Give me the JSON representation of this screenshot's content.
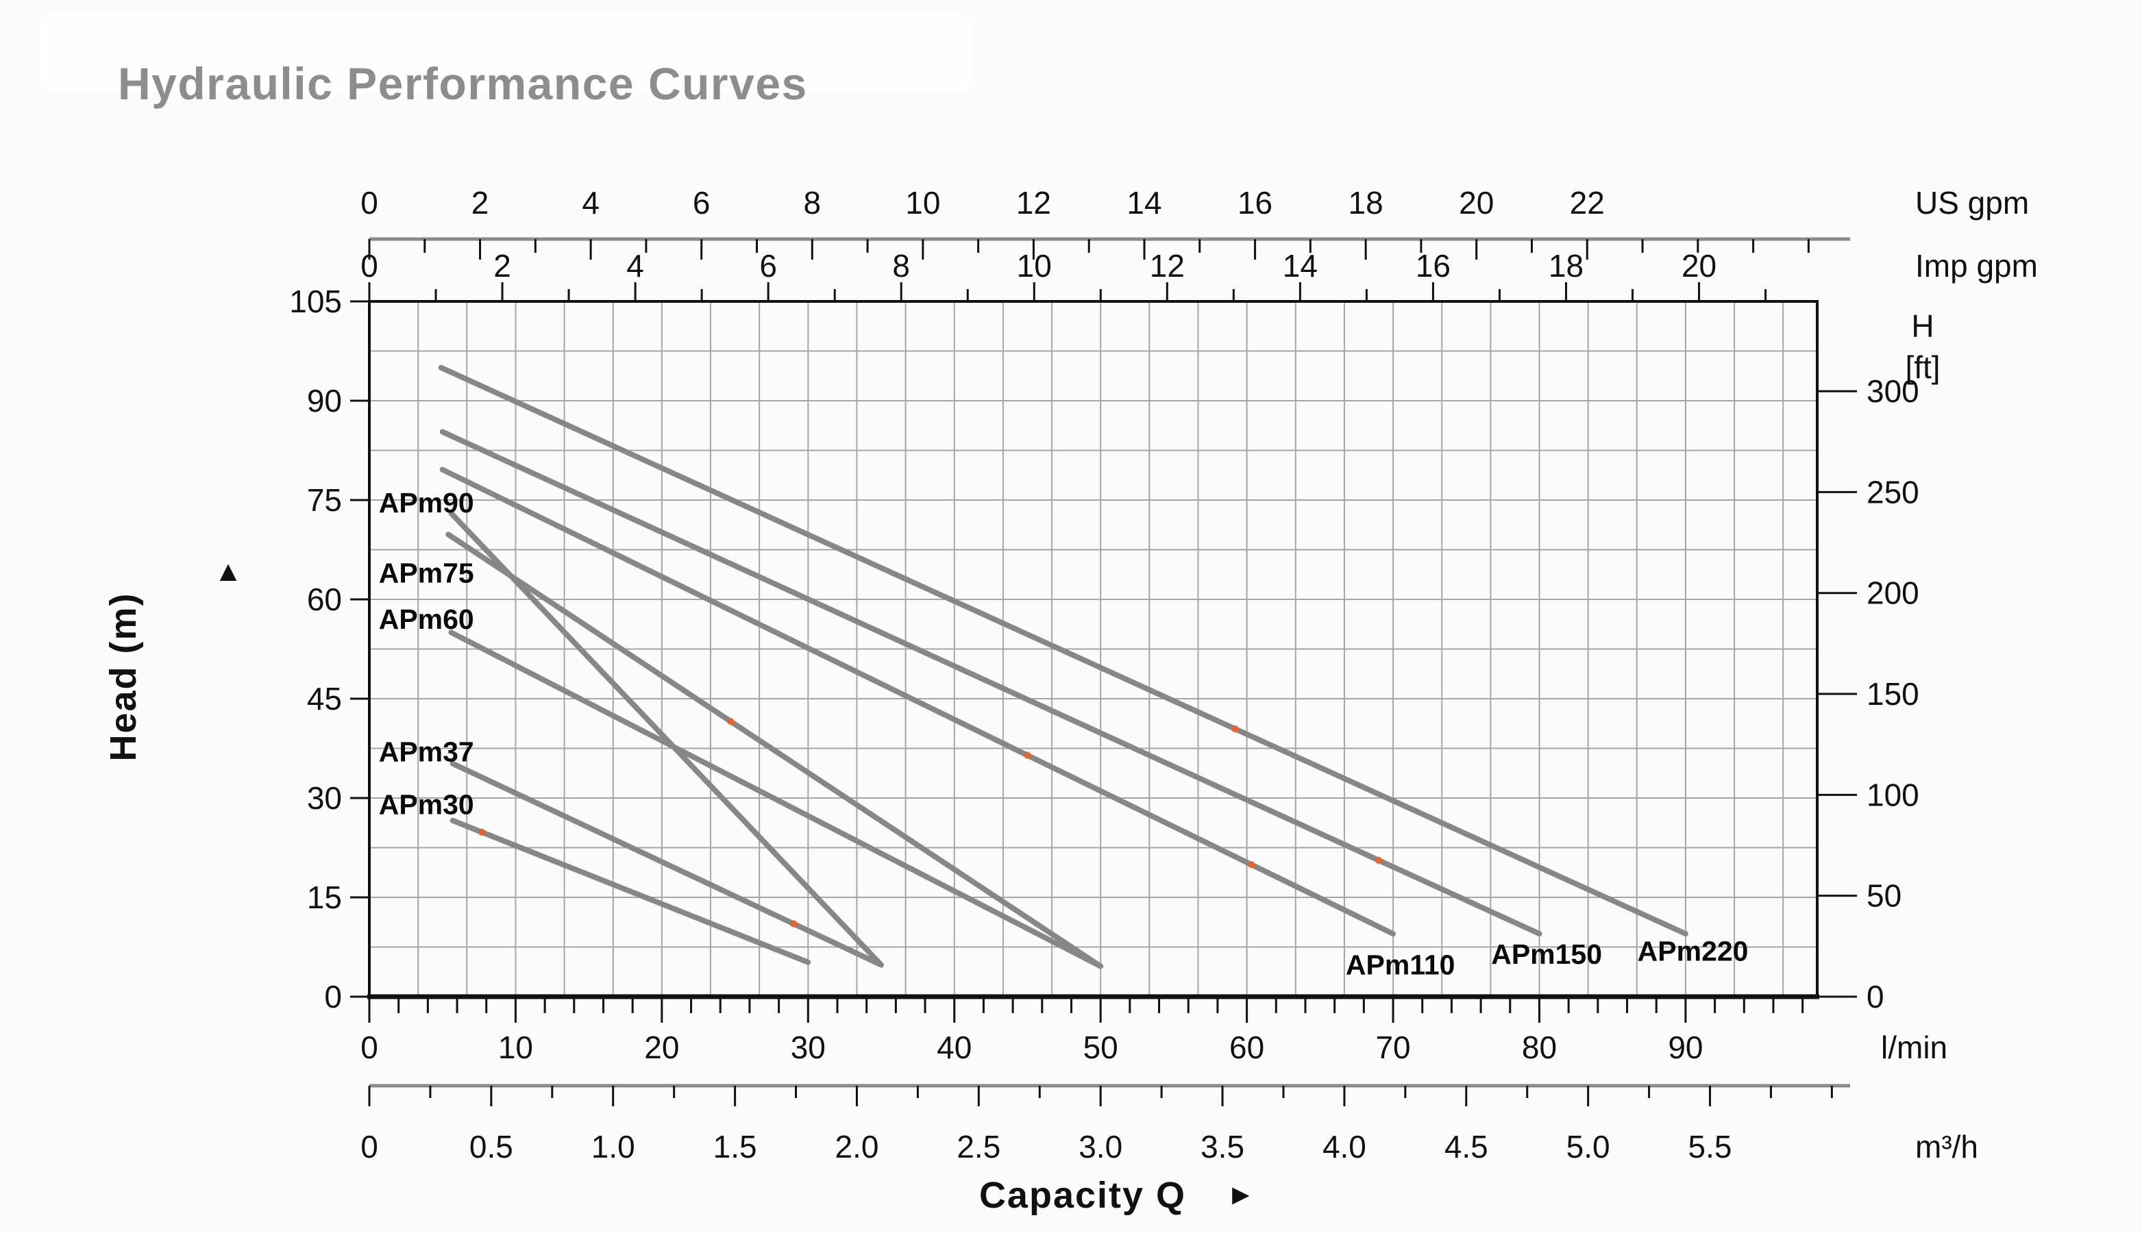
{
  "title": "Hydraulic Performance Curves",
  "colors": {
    "background": "#fbfbfb",
    "title": "#8d8d8d",
    "curve": "#878787",
    "grid": "#a6a6a6",
    "axis": "#111111",
    "gray_axis": "#8a8a8a",
    "marker": "#e8622a"
  },
  "annotations": {
    "y_arrow": "▲",
    "x_arrow": "►"
  },
  "chart_data": {
    "type": "line",
    "title": "Hydraulic Performance Curves",
    "xlabel": "Capacity Q",
    "ylabel": "Head (m)",
    "grid": {
      "x_step_m3h": 0.2,
      "y_step_m": 7.5,
      "grid_on": true
    },
    "x_range_lpm": [
      0,
      99
    ],
    "y_range_m": [
      0,
      105
    ],
    "x_axes": [
      {
        "id": "us_gpm",
        "unit": "US gpm",
        "position": "top",
        "major_ticks": [
          0,
          2,
          4,
          6,
          8,
          10,
          12,
          14,
          16,
          18,
          20,
          22
        ],
        "minor_step": 1,
        "minor_max": 26,
        "lpm_per_unit": 3.785
      },
      {
        "id": "imp_gpm",
        "unit": "Imp gpm",
        "position": "top",
        "major_ticks": [
          0,
          2,
          4,
          6,
          8,
          10,
          12,
          14,
          16,
          18,
          20
        ],
        "minor_step": 1,
        "minor_max": 21,
        "lpm_per_unit": 4.546
      },
      {
        "id": "lpm",
        "unit": "l/min",
        "position": "bottom",
        "major_ticks": [
          0,
          10,
          20,
          30,
          40,
          50,
          60,
          70,
          80,
          90
        ],
        "minor_step": 2,
        "minor_max": 98,
        "lpm_per_unit": 1
      },
      {
        "id": "m3h",
        "unit": "m³/h",
        "position": "bottom",
        "major_ticks": [
          0,
          0.5,
          1.0,
          1.5,
          2.0,
          2.5,
          3.0,
          3.5,
          4.0,
          4.5,
          5.0,
          5.5
        ],
        "minor_step": 0.25,
        "minor_max": 6,
        "lpm_per_unit": 16.667
      }
    ],
    "y_axis_left": {
      "label": "Head (m)",
      "ticks": [
        0,
        15,
        30,
        45,
        60,
        75,
        90,
        105
      ],
      "max": 105
    },
    "y_axis_right": {
      "label": "H",
      "unit": "[ft]",
      "ticks": [
        0,
        50,
        100,
        150,
        200,
        250,
        300
      ],
      "m_per_ft": 0.3048
    },
    "series": [
      {
        "name": "APm30",
        "points": [
          [
            5.7,
            26.6
          ],
          [
            30,
            5.2
          ]
        ],
        "label_pos": [
          3.9,
          29.0
        ]
      },
      {
        "name": "APm37",
        "points": [
          [
            5.7,
            35.2
          ],
          [
            35,
            4.8
          ]
        ],
        "label_pos": [
          3.9,
          37.0
        ]
      },
      {
        "name": "APm60",
        "points": [
          [
            5.6,
            55.0
          ],
          [
            50,
            4.6
          ]
        ],
        "label_pos": [
          3.9,
          57.0
        ]
      },
      {
        "name": "APm75",
        "points": [
          [
            5.4,
            69.8
          ],
          [
            50,
            4.6
          ]
        ],
        "label_pos": [
          3.9,
          64.0
        ]
      },
      {
        "name": "APm90",
        "points": [
          [
            5.6,
            73.0
          ],
          [
            35,
            4.8
          ]
        ],
        "label_pos": [
          3.9,
          74.6
        ]
      },
      {
        "name": "APm110",
        "points": [
          [
            5.0,
            79.6
          ],
          [
            70,
            9.5
          ]
        ],
        "label_pos": [
          70.5,
          4.8
        ]
      },
      {
        "name": "APm150",
        "points": [
          [
            5.0,
            85.3
          ],
          [
            80,
            9.5
          ]
        ],
        "label_pos": [
          80.5,
          6.4
        ]
      },
      {
        "name": "APm220",
        "points": [
          [
            4.9,
            95.0
          ],
          [
            90,
            9.5
          ]
        ],
        "label_pos": [
          90.5,
          6.9
        ]
      }
    ],
    "markers": [
      {
        "series": "APm30",
        "q": 7.7
      },
      {
        "series": "APm37",
        "q": 29
      },
      {
        "series": "APm75",
        "q": 24.7
      },
      {
        "series": "APm110",
        "q": 45
      },
      {
        "series": "APm110",
        "q": 60.3
      },
      {
        "series": "APm150",
        "q": 69
      },
      {
        "series": "APm220",
        "q": 59.2
      }
    ]
  }
}
